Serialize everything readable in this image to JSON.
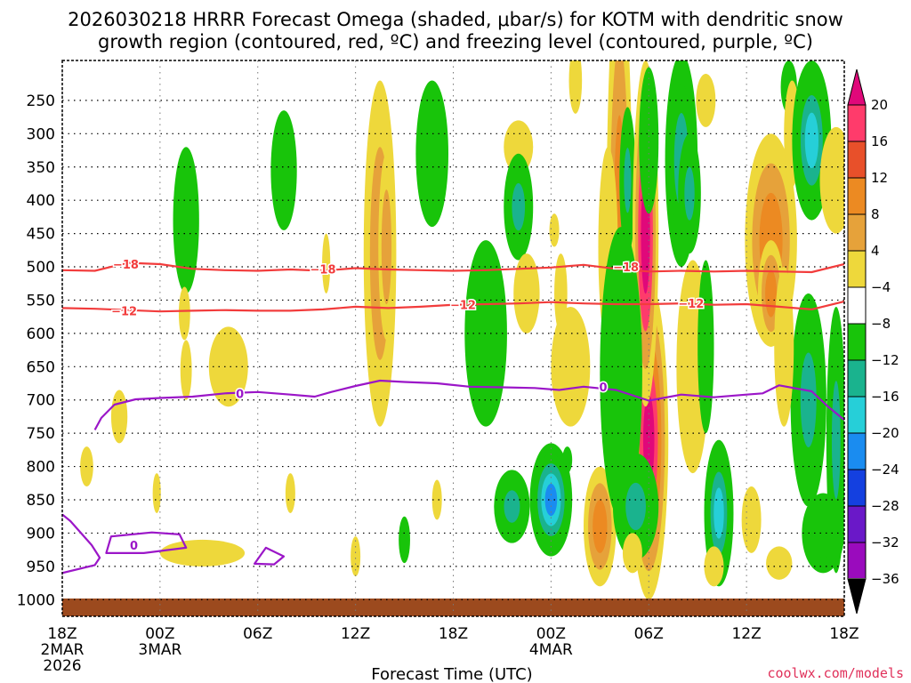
{
  "chart_data": {
    "type": "contour",
    "title_line1": "2026030218 HRRR Forecast Omega (shaded, μbar/s) for KOTM with dendritic snow",
    "title_line2": "growth region (contoured, red, ºC) and freezing level (contoured, purple, ºC)",
    "xlabel": "Forecast Time (UTC)",
    "credit": "coolwx.com/models",
    "x_hours_range": [
      0,
      48
    ],
    "y_range_hpa": [
      190,
      1025
    ],
    "x_ticks": [
      {
        "hour": 0,
        "line1": "18Z",
        "line2": "2MAR",
        "line3": "2026"
      },
      {
        "hour": 6,
        "line1": "00Z",
        "line2": "3MAR",
        "line3": ""
      },
      {
        "hour": 12,
        "line1": "06Z",
        "line2": "",
        "line3": ""
      },
      {
        "hour": 18,
        "line1": "12Z",
        "line2": "",
        "line3": ""
      },
      {
        "hour": 24,
        "line1": "18Z",
        "line2": "",
        "line3": ""
      },
      {
        "hour": 30,
        "line1": "00Z",
        "line2": "4MAR",
        "line3": ""
      },
      {
        "hour": 36,
        "line1": "06Z",
        "line2": "",
        "line3": ""
      },
      {
        "hour": 42,
        "line1": "12Z",
        "line2": "",
        "line3": ""
      },
      {
        "hour": 48,
        "line1": "18Z",
        "line2": "",
        "line3": ""
      }
    ],
    "y_ticks": [
      {
        "p": 250,
        "label": "250"
      },
      {
        "p": 300,
        "label": "300"
      },
      {
        "p": 350,
        "label": "350"
      },
      {
        "p": 400,
        "label": "400"
      },
      {
        "p": 450,
        "label": "450"
      },
      {
        "p": 500,
        "label": "500"
      },
      {
        "p": 550,
        "label": "550"
      },
      {
        "p": 600,
        "label": "600"
      },
      {
        "p": 650,
        "label": "650"
      },
      {
        "p": 700,
        "label": "700"
      },
      {
        "p": 750,
        "label": "750"
      },
      {
        "p": 800,
        "label": "800"
      },
      {
        "p": 850,
        "label": "850"
      },
      {
        "p": 900,
        "label": "900"
      },
      {
        "p": 950,
        "label": "950"
      },
      {
        "p": 1000,
        "label": "1000"
      }
    ],
    "colorbar": {
      "levels": [
        "20",
        "16",
        "12",
        "8",
        "4",
        "−4",
        "−8",
        "−12",
        "−16",
        "−20",
        "−24",
        "−28",
        "−32",
        "−36"
      ],
      "colors": [
        "#ff3b6b",
        "#e8502a",
        "#ec8a22",
        "#e6a23a",
        "#eed83b",
        "#ffffff",
        "#18c40a",
        "#1ab38e",
        "#26cfd8",
        "#1a8cf0",
        "#1440e0",
        "#6a18c8",
        "#9a0bbd",
        "#a8a8a8"
      ],
      "top_color": "#e0087a",
      "bottom_color": "#000000"
    },
    "contour_labels": [
      {
        "text": "−18",
        "hour": 3.9,
        "p": 496,
        "color": "#f23c3c"
      },
      {
        "text": "−18",
        "hour": 16.0,
        "p": 503,
        "color": "#f23c3c"
      },
      {
        "text": "−18",
        "hour": 34.6,
        "p": 500,
        "color": "#f23c3c"
      },
      {
        "text": "−12",
        "hour": 3.8,
        "p": 566,
        "color": "#f23c3c"
      },
      {
        "text": "−12",
        "hour": 24.6,
        "p": 557,
        "color": "#f23c3c"
      },
      {
        "text": "−12",
        "hour": 38.6,
        "p": 555,
        "color": "#f23c3c"
      },
      {
        "text": "0",
        "hour": 10.9,
        "p": 690,
        "color": "#9b16c8"
      },
      {
        "text": "0",
        "hour": 33.2,
        "p": 680,
        "color": "#9b16c8"
      },
      {
        "text": "0",
        "hour": 4.4,
        "p": 918,
        "color": "#9b16c8"
      }
    ],
    "contours": [
      {
        "name": "-18C isotherm",
        "color": "#f23c3c",
        "points": [
          [
            0,
            505
          ],
          [
            2,
            506
          ],
          [
            4,
            494
          ],
          [
            6,
            496
          ],
          [
            8,
            503
          ],
          [
            10,
            505
          ],
          [
            12,
            506
          ],
          [
            14,
            504
          ],
          [
            16,
            506
          ],
          [
            18,
            502
          ],
          [
            20,
            504
          ],
          [
            22,
            505
          ],
          [
            24,
            506
          ],
          [
            26,
            505
          ],
          [
            28,
            503
          ],
          [
            30,
            501
          ],
          [
            32,
            497
          ],
          [
            34,
            503
          ],
          [
            36,
            507
          ],
          [
            38,
            506
          ],
          [
            40,
            507
          ],
          [
            42,
            506
          ],
          [
            44,
            507
          ],
          [
            46,
            508
          ],
          [
            48,
            496
          ]
        ]
      },
      {
        "name": "-12C isotherm",
        "color": "#f23c3c",
        "points": [
          [
            0,
            562
          ],
          [
            2,
            563
          ],
          [
            4,
            565
          ],
          [
            6,
            567
          ],
          [
            8,
            566
          ],
          [
            10,
            565
          ],
          [
            12,
            566
          ],
          [
            14,
            566
          ],
          [
            16,
            564
          ],
          [
            18,
            560
          ],
          [
            20,
            562
          ],
          [
            22,
            560
          ],
          [
            24,
            557
          ],
          [
            26,
            556
          ],
          [
            28,
            555
          ],
          [
            30,
            553
          ],
          [
            32,
            555
          ],
          [
            34,
            556
          ],
          [
            36,
            556
          ],
          [
            38,
            555
          ],
          [
            40,
            557
          ],
          [
            42,
            556
          ],
          [
            44,
            560
          ],
          [
            46,
            564
          ],
          [
            48,
            552
          ]
        ]
      },
      {
        "name": "0C freezing level",
        "color": "#9b16c8",
        "points": [
          [
            2.0,
            745
          ],
          [
            2.4,
            727
          ],
          [
            3.2,
            707
          ],
          [
            4.5,
            699
          ],
          [
            6,
            697
          ],
          [
            8,
            695
          ],
          [
            10,
            690
          ],
          [
            12,
            688
          ],
          [
            14,
            692
          ],
          [
            15.5,
            695
          ],
          [
            16.5,
            688
          ],
          [
            18,
            679
          ],
          [
            19.5,
            671
          ],
          [
            21,
            673
          ],
          [
            23,
            675
          ],
          [
            25,
            680
          ],
          [
            27,
            681
          ],
          [
            29,
            682
          ],
          [
            30.5,
            685
          ],
          [
            32,
            680
          ],
          [
            34,
            685
          ],
          [
            36,
            701
          ],
          [
            38,
            692
          ],
          [
            40,
            696
          ],
          [
            42,
            692
          ],
          [
            43,
            690
          ],
          [
            44,
            678
          ],
          [
            46,
            687
          ],
          [
            47,
            710
          ],
          [
            48,
            730
          ]
        ]
      },
      {
        "name": "0C surface branch",
        "color": "#9b16c8",
        "points": [
          [
            0,
            960
          ],
          [
            2,
            948
          ],
          [
            2.3,
            937
          ],
          [
            1.8,
            918
          ],
          [
            0.5,
            882
          ],
          [
            0,
            872
          ]
        ]
      },
      {
        "name": "0C small closed contour",
        "color": "#9b16c8",
        "closed": true,
        "points": [
          [
            2.7,
            930
          ],
          [
            3.0,
            905
          ],
          [
            5.5,
            899
          ],
          [
            7.2,
            902
          ],
          [
            7.6,
            922
          ],
          [
            5,
            930
          ]
        ]
      },
      {
        "name": "0C small closed contour 2",
        "color": "#9b16c8",
        "closed": true,
        "points": [
          [
            11.8,
            946
          ],
          [
            12.5,
            922
          ],
          [
            13.6,
            935
          ],
          [
            13.0,
            947
          ]
        ]
      }
    ],
    "omega_shading": [
      {
        "h": 7.6,
        "p": 430,
        "rx": 0.8,
        "ry": 110,
        "levels": [
          -4,
          -8
        ]
      },
      {
        "h": 7.5,
        "p": 570,
        "rx": 0.35,
        "ry": 40,
        "levels": [
          4
        ]
      },
      {
        "h": 7.6,
        "p": 655,
        "rx": 0.35,
        "ry": 45,
        "levels": [
          4
        ]
      },
      {
        "h": 10.2,
        "p": 650,
        "rx": 1.2,
        "ry": 60,
        "levels": [
          4
        ]
      },
      {
        "h": 8.6,
        "p": 930,
        "rx": 2.6,
        "ry": 20,
        "levels": [
          4
        ]
      },
      {
        "h": 5.8,
        "p": 840,
        "rx": 0.25,
        "ry": 30,
        "levels": [
          4
        ]
      },
      {
        "h": 1.5,
        "p": 800,
        "rx": 0.4,
        "ry": 30,
        "levels": [
          4
        ]
      },
      {
        "h": 3.5,
        "p": 725,
        "rx": 0.5,
        "ry": 40,
        "levels": [
          4
        ]
      },
      {
        "h": 13.6,
        "p": 355,
        "rx": 0.8,
        "ry": 90,
        "levels": [
          -4,
          -8
        ]
      },
      {
        "h": 14.0,
        "p": 840,
        "rx": 0.3,
        "ry": 30,
        "levels": [
          4
        ]
      },
      {
        "h": 19.5,
        "p": 480,
        "rx": 1.0,
        "ry": 260,
        "levels": [
          4,
          8
        ]
      },
      {
        "h": 19.9,
        "p": 470,
        "rx": 0.5,
        "ry": 140,
        "levels": [
          4,
          8
        ]
      },
      {
        "h": 18.0,
        "p": 935,
        "rx": 0.3,
        "ry": 30,
        "levels": [
          4
        ]
      },
      {
        "h": 16.2,
        "p": 495,
        "rx": 0.25,
        "ry": 45,
        "levels": [
          4
        ]
      },
      {
        "h": 22.7,
        "p": 330,
        "rx": 1.0,
        "ry": 110,
        "levels": [
          -4,
          -8
        ]
      },
      {
        "h": 23.0,
        "p": 850,
        "rx": 0.3,
        "ry": 30,
        "levels": [
          4
        ]
      },
      {
        "h": 21.0,
        "p": 910,
        "rx": 0.35,
        "ry": 35,
        "levels": [
          -4,
          -8
        ]
      },
      {
        "h": 26.0,
        "p": 600,
        "rx": 1.3,
        "ry": 140,
        "levels": [
          -4,
          -8
        ]
      },
      {
        "h": 28.0,
        "p": 320,
        "rx": 0.9,
        "ry": 40,
        "levels": [
          4
        ]
      },
      {
        "h": 28.0,
        "p": 410,
        "rx": 0.9,
        "ry": 80,
        "levels": [
          -4,
          -8,
          -12
        ]
      },
      {
        "h": 28.5,
        "p": 540,
        "rx": 0.8,
        "ry": 60,
        "levels": [
          4
        ]
      },
      {
        "h": 27.6,
        "p": 860,
        "rx": 1.1,
        "ry": 55,
        "levels": [
          -4,
          -8,
          -12
        ]
      },
      {
        "h": 31.5,
        "p": 220,
        "rx": 0.4,
        "ry": 50,
        "levels": [
          4
        ]
      },
      {
        "h": 30.6,
        "p": 540,
        "rx": 0.4,
        "ry": 60,
        "levels": [
          4
        ]
      },
      {
        "h": 30.2,
        "p": 445,
        "rx": 0.3,
        "ry": 25,
        "levels": [
          4
        ]
      },
      {
        "h": 30.0,
        "p": 850,
        "rx": 1.3,
        "ry": 85,
        "levels": [
          -4,
          -8,
          -12,
          -16,
          -20
        ]
      },
      {
        "h": 31.2,
        "p": 650,
        "rx": 1.2,
        "ry": 90,
        "levels": [
          4
        ]
      },
      {
        "h": 31.0,
        "p": 790,
        "rx": 0.3,
        "ry": 20,
        "levels": [
          -4,
          -8
        ]
      },
      {
        "h": 33.0,
        "p": 890,
        "rx": 1.0,
        "ry": 90,
        "levels": [
          4,
          8,
          12
        ]
      },
      {
        "h": 34.2,
        "p": 450,
        "rx": 0.8,
        "ry": 400,
        "levels": [
          4,
          8,
          12
        ]
      },
      {
        "h": 34.7,
        "p": 370,
        "rx": 0.5,
        "ry": 110,
        "levels": [
          -4,
          -8,
          -12
        ]
      },
      {
        "h": 33.5,
        "p": 470,
        "rx": 0.6,
        "ry": 150,
        "levels": [
          4
        ]
      },
      {
        "h": 36.0,
        "p": 760,
        "rx": 1.2,
        "ry": 240,
        "levels": [
          4,
          8,
          12,
          16,
          20
        ]
      },
      {
        "h": 35.8,
        "p": 450,
        "rx": 0.8,
        "ry": 260,
        "levels": [
          4,
          8,
          16,
          20
        ]
      },
      {
        "h": 34.3,
        "p": 660,
        "rx": 1.3,
        "ry": 220,
        "levels": [
          -4,
          -8
        ]
      },
      {
        "h": 36.0,
        "p": 310,
        "rx": 0.6,
        "ry": 110,
        "levels": [
          -4
        ]
      },
      {
        "h": 35.2,
        "p": 860,
        "rx": 1.4,
        "ry": 80,
        "levels": [
          -4,
          -8,
          -12
        ]
      },
      {
        "h": 35.0,
        "p": 930,
        "rx": 0.6,
        "ry": 30,
        "levels": [
          4
        ]
      },
      {
        "h": 38.0,
        "p": 340,
        "rx": 1.0,
        "ry": 160,
        "levels": [
          -4,
          -8,
          -12
        ]
      },
      {
        "h": 38.5,
        "p": 390,
        "rx": 0.7,
        "ry": 90,
        "levels": [
          -4,
          -8,
          -12
        ]
      },
      {
        "h": 39.5,
        "p": 250,
        "rx": 0.6,
        "ry": 40,
        "levels": [
          4
        ]
      },
      {
        "h": 38.7,
        "p": 650,
        "rx": 1.0,
        "ry": 160,
        "levels": [
          4
        ]
      },
      {
        "h": 39.5,
        "p": 620,
        "rx": 0.5,
        "ry": 130,
        "levels": [
          -4
        ]
      },
      {
        "h": 40.3,
        "p": 870,
        "rx": 0.9,
        "ry": 110,
        "levels": [
          -4,
          -8,
          -12,
          -16
        ]
      },
      {
        "h": 42.3,
        "p": 880,
        "rx": 0.6,
        "ry": 50,
        "levels": [
          4
        ]
      },
      {
        "h": 40.0,
        "p": 950,
        "rx": 0.6,
        "ry": 30,
        "levels": [
          4
        ]
      },
      {
        "h": 43.5,
        "p": 460,
        "rx": 1.6,
        "ry": 160,
        "levels": [
          4,
          8,
          12
        ]
      },
      {
        "h": 43.5,
        "p": 540,
        "rx": 0.8,
        "ry": 80,
        "levels": [
          4,
          8,
          12
        ]
      },
      {
        "h": 44.6,
        "p": 230,
        "rx": 0.5,
        "ry": 40,
        "levels": [
          -4,
          -8
        ]
      },
      {
        "h": 44.8,
        "p": 300,
        "rx": 0.5,
        "ry": 80,
        "levels": [
          4
        ]
      },
      {
        "h": 46.0,
        "p": 310,
        "rx": 1.2,
        "ry": 120,
        "levels": [
          -4,
          -8,
          -12,
          -16
        ]
      },
      {
        "h": 47.5,
        "p": 370,
        "rx": 1.0,
        "ry": 80,
        "levels": [
          4
        ]
      },
      {
        "h": 45.8,
        "p": 700,
        "rx": 1.1,
        "ry": 160,
        "levels": [
          -4,
          -8,
          -12
        ]
      },
      {
        "h": 47.5,
        "p": 760,
        "rx": 0.6,
        "ry": 200,
        "levels": [
          -4,
          -8,
          -12
        ]
      },
      {
        "h": 44.3,
        "p": 620,
        "rx": 0.6,
        "ry": 120,
        "levels": [
          4
        ]
      },
      {
        "h": 46.7,
        "p": 900,
        "rx": 1.3,
        "ry": 60,
        "levels": [
          -4,
          -8
        ]
      },
      {
        "h": 44.0,
        "p": 945,
        "rx": 0.8,
        "ry": 25,
        "levels": [
          4
        ]
      }
    ]
  }
}
